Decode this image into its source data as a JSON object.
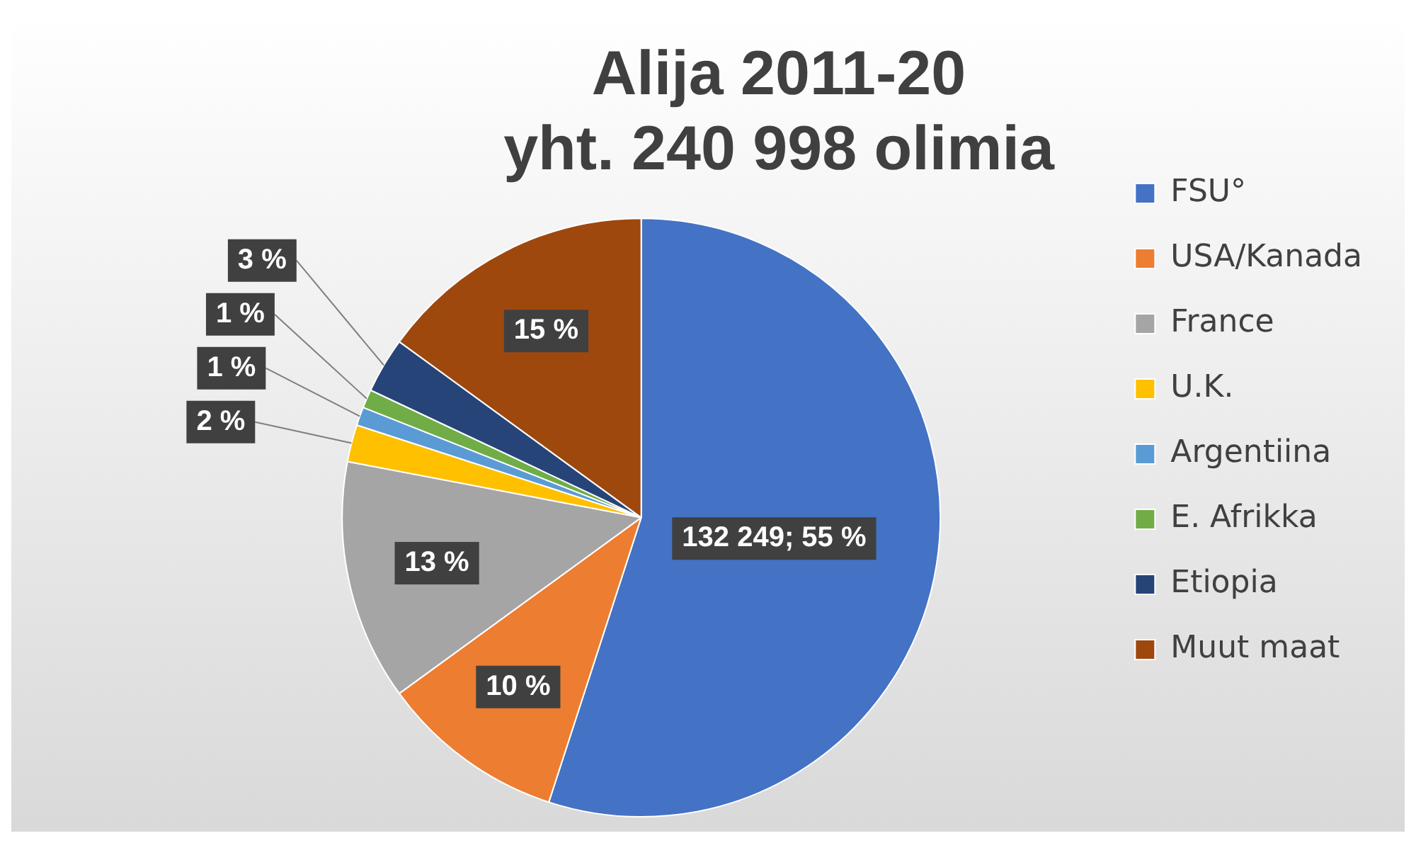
{
  "chart_data": {
    "type": "pie",
    "title": "Alija 2011-20",
    "subtitle": "yht. 240 998 olimia",
    "categories": [
      "FSU°",
      "USA/Kanada",
      "France",
      "U.K.",
      "Argentiina",
      "E. Afrikka",
      "Etiopia",
      "Muut maat"
    ],
    "values": [
      55,
      10,
      13,
      2,
      1,
      1,
      3,
      15
    ],
    "colors": [
      "#4472c4",
      "#ed7d31",
      "#a5a5a5",
      "#ffc000",
      "#5b9bd5",
      "#70ad47",
      "#264478",
      "#9e480e"
    ],
    "value_labels": [
      "132 249; 55 %",
      "10 %",
      "13 %",
      "2 %",
      "1 %",
      "1 %",
      "3 %",
      "15 %"
    ],
    "legend": "right"
  }
}
